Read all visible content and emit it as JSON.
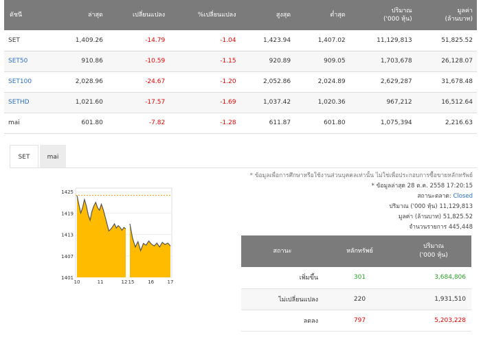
{
  "index_table": {
    "headers": [
      "ดัชนี",
      "ล่าสุด",
      "เปลี่ยนแปลง",
      "%เปลี่ยนแปลง",
      "สูงสุด",
      "ต่ำสุด",
      "ปริมาณ\n('000 หุ้น)",
      "มูลค่า\n(ล้านบาท)"
    ],
    "rows": [
      {
        "name": "SET",
        "last": "1,409.26",
        "change": "-14.79",
        "pct": "-1.04",
        "high": "1,423.94",
        "low": "1,407.02",
        "volume": "11,129,813",
        "value": "51,825.52"
      },
      {
        "name": "SET50",
        "last": "910.86",
        "change": "-10.59",
        "pct": "-1.15",
        "high": "920.89",
        "low": "909.05",
        "volume": "1,703,678",
        "value": "26,128.07"
      },
      {
        "name": "SET100",
        "last": "2,028.96",
        "change": "-24.67",
        "pct": "-1.20",
        "high": "2,052.86",
        "low": "2,024.89",
        "volume": "2,629,287",
        "value": "31,678.48"
      },
      {
        "name": "SETHD",
        "last": "1,021.60",
        "change": "-17.57",
        "pct": "-1.69",
        "high": "1,037.42",
        "low": "1,020.36",
        "volume": "967,212",
        "value": "16,512.64"
      },
      {
        "name": "mai",
        "last": "601.80",
        "change": "-7.82",
        "pct": "-1.28",
        "high": "611.87",
        "low": "601.80",
        "volume": "1,075,394",
        "value": "2,216.63"
      }
    ]
  },
  "tabs": [
    "SET",
    "mai"
  ],
  "info": {
    "note": "* ข้อมูลเพื่อการศึกษาหรือใช้งานส่วนบุคคลเท่านั้น ไม่ใช่เพื่อประกอบการซื้อขายหลักทรัพย์",
    "updated": "* ข้อมูลล่าสุด 28 ต.ค. 2558 17:20:15",
    "market_status_label": "สถานะตลาด:",
    "market_status_value": "Closed",
    "volume_label": "ปริมาณ ('000 หุ้น)",
    "volume_value": "11,129,813",
    "value_label": "มูลค่า (ล้านบาท)",
    "value_value": "51,825.52",
    "deals_label": "จำนวนรายการ",
    "deals_value": "445,448"
  },
  "status_table": {
    "headers": [
      "สถานะ",
      "หลักทรัพย์",
      "ปริมาณ\n('000 หุ้น)"
    ],
    "rows": [
      {
        "status": "เพิ่มขึ้น",
        "count": "301",
        "volume": "3,684,806",
        "color": "#2aa02a"
      },
      {
        "status": "ไม่เปลี่ยนแปลง",
        "count": "220",
        "volume": "1,931,510",
        "color": "#333333"
      },
      {
        "status": "ลดลง",
        "count": "797",
        "volume": "5,203,228",
        "color": "#e00000"
      }
    ]
  },
  "chart_data": {
    "type": "area",
    "y_ticks": [
      "1425",
      "1419",
      "1413",
      "1407",
      "1401"
    ],
    "x_ticks": [
      "10",
      "11",
      "12",
      "15",
      "16",
      "17"
    ],
    "ylim": [
      1401,
      1426
    ],
    "reference_line": 1424,
    "fill_color": "#ffbb00",
    "line_color": "#555555",
    "session1": [
      1423.9,
      1421.5,
      1419.0,
      1420.5,
      1422.8,
      1421.0,
      1418.5,
      1417.0,
      1419.5,
      1421.0,
      1422.0,
      1420.5,
      1419.8,
      1421.5,
      1420.0,
      1418.0,
      1416.0,
      1414.0,
      1414.5,
      1415.2,
      1416.0,
      1414.8,
      1415.5,
      1415.0,
      1414.2,
      1415.0,
      1414.6
    ],
    "session2": [
      1416.0,
      1412.0,
      1409.5,
      1411.0,
      1408.5,
      1410.5,
      1410.0,
      1411.2,
      1410.3,
      1409.8,
      1410.6,
      1409.5,
      1410.8,
      1410.2,
      1410.6,
      1409.8
    ]
  },
  "colors": {
    "header_bg": "#7b7b7b",
    "negative": "#e00000",
    "positive": "#2aa02a",
    "link": "#2a6ebb"
  }
}
